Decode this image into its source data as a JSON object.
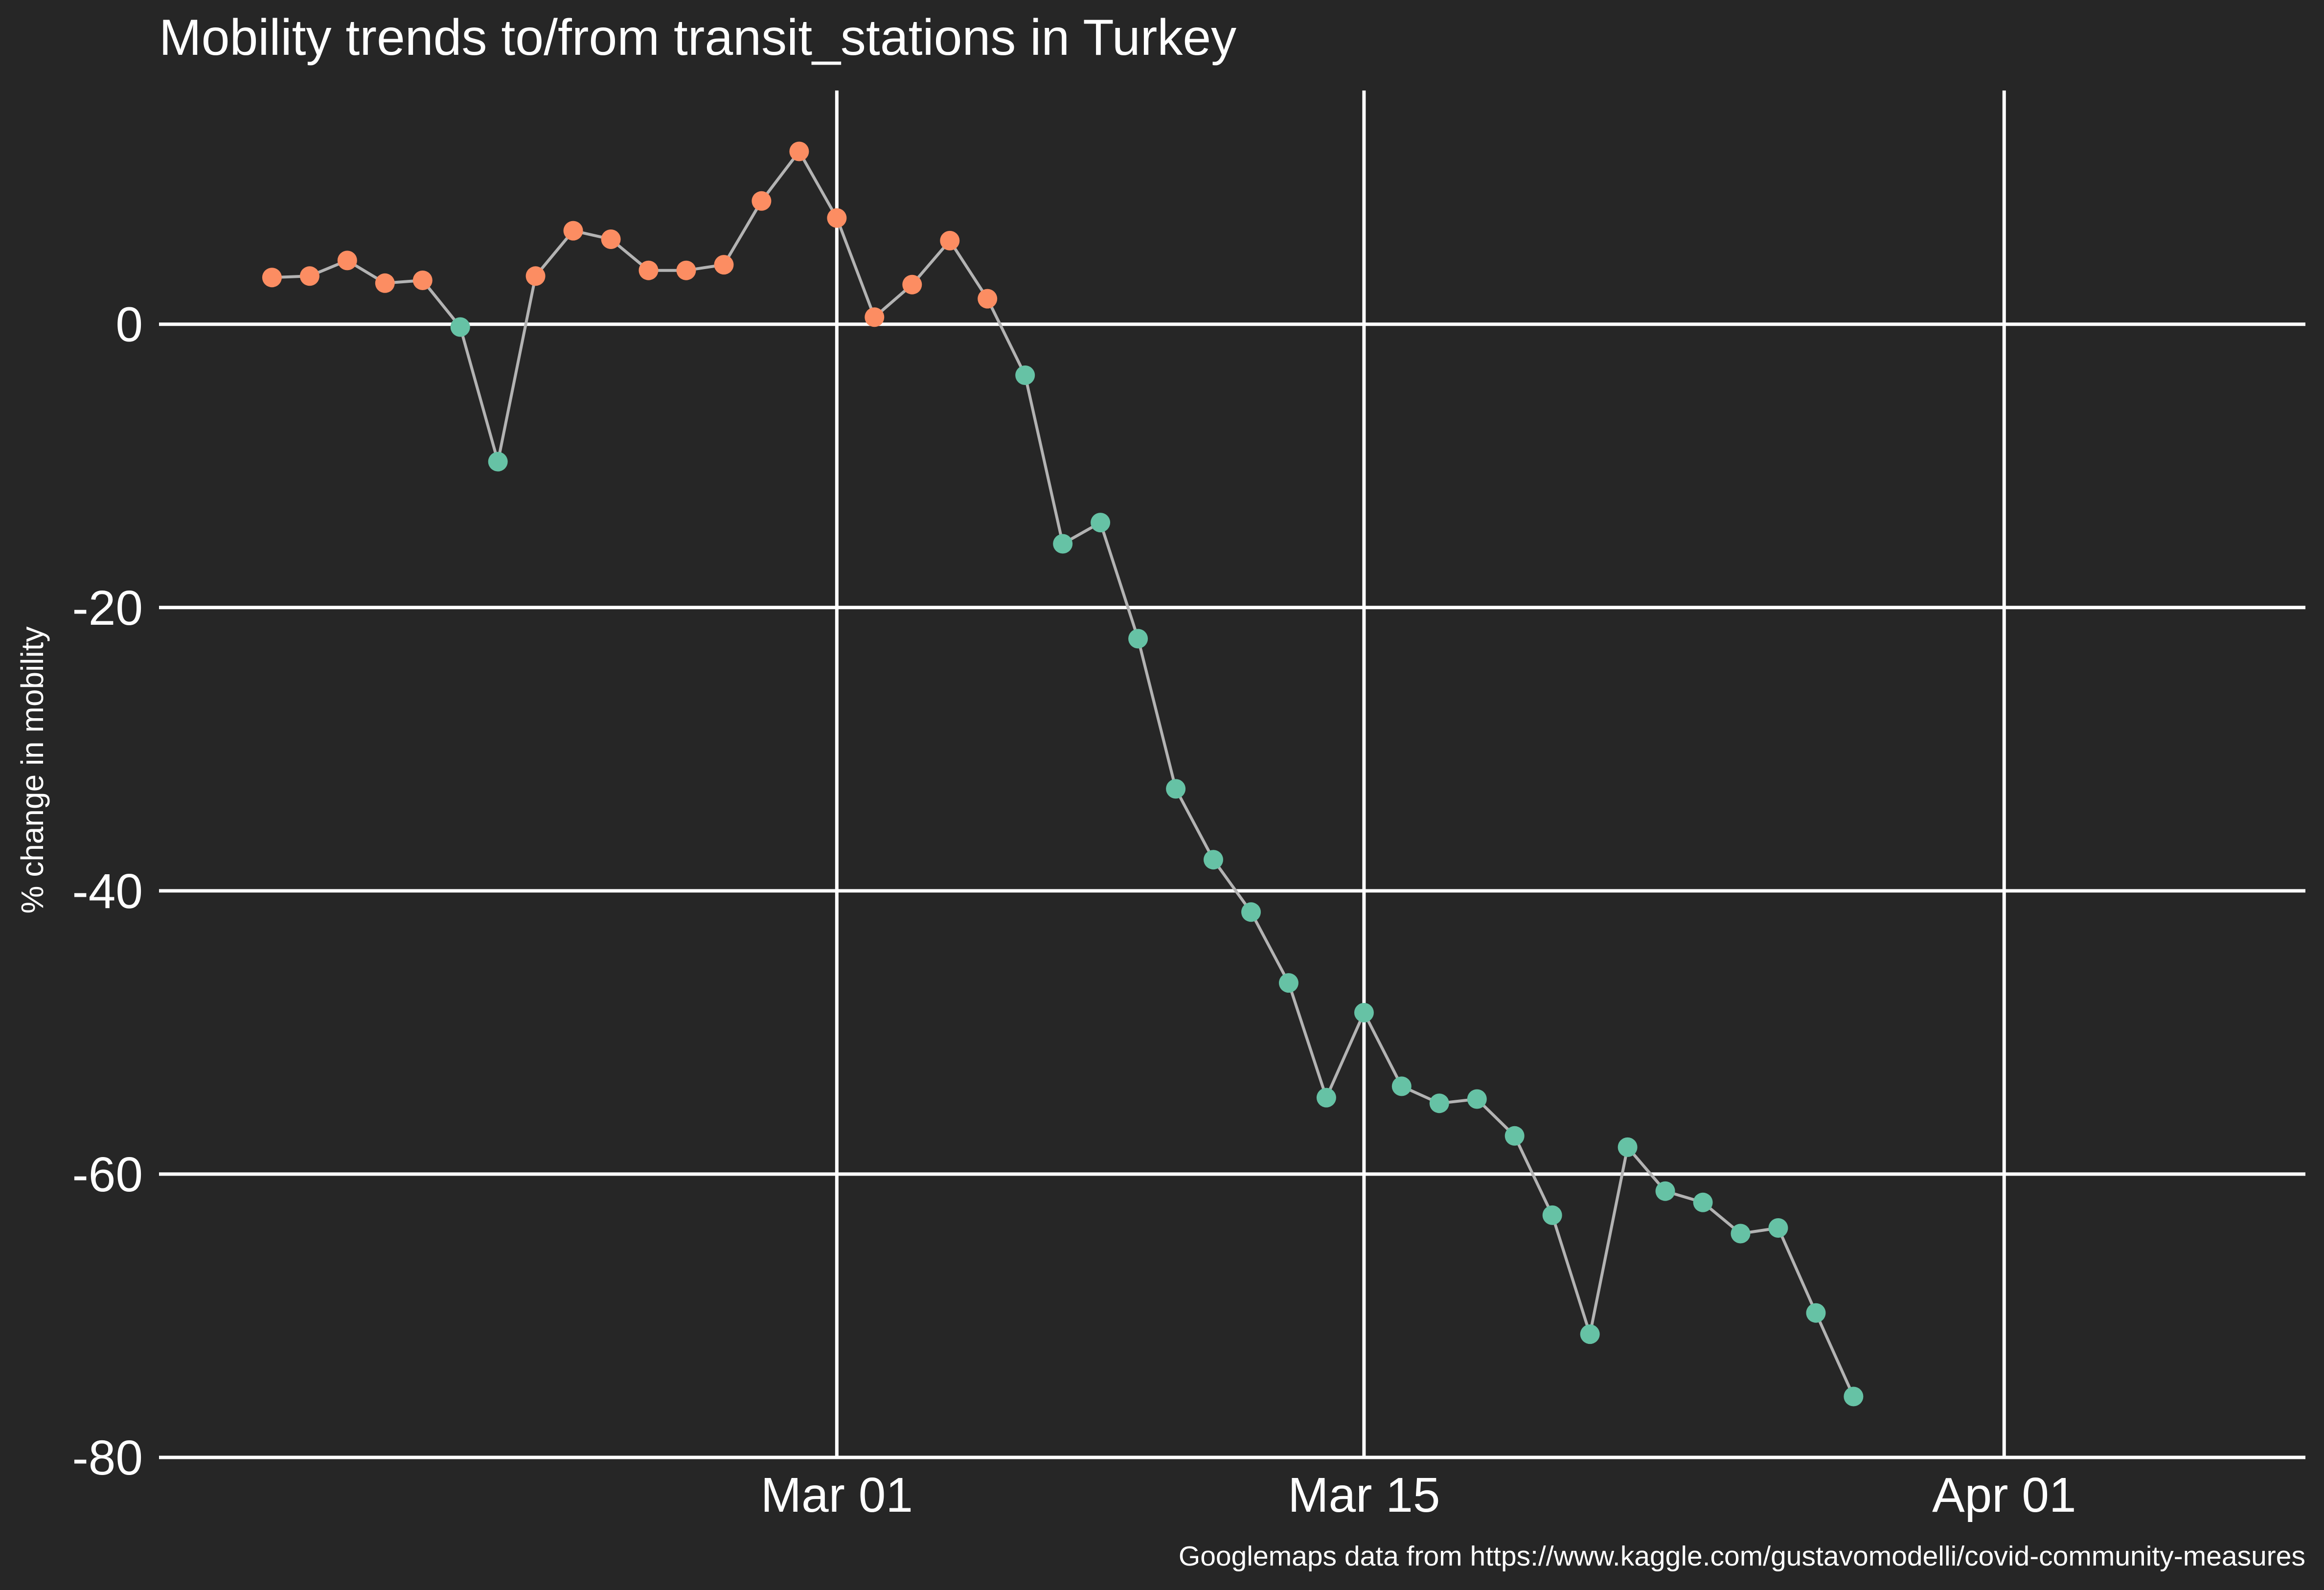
{
  "chart_data": {
    "type": "scatter",
    "title": "Mobility trends to/from transit_stations in Turkey",
    "ylabel": "% change in mobility",
    "xlabel": "",
    "caption": "Googlemaps data from https://www.kaggle.com/gustavomodelli/covid-community-measures",
    "x_start_date": "2020-02-15",
    "x_ticks": [
      {
        "label": "Mar 01",
        "date": "2020-03-01"
      },
      {
        "label": "Mar 15",
        "date": "2020-03-15"
      },
      {
        "label": "Apr 01",
        "date": "2020-04-01"
      }
    ],
    "y_ticks": [
      0,
      -20,
      -40,
      -60,
      -80
    ],
    "xlim": [
      "2020-02-12",
      "2020-04-09"
    ],
    "ylim": [
      -80,
      16.5
    ],
    "grid": true,
    "colors": {
      "positive": "#fc8d62",
      "negative": "#66c2a5",
      "line": "#b3b3b3",
      "background": "#262626",
      "gridline": "#ffffff"
    },
    "series": [
      {
        "values": [
          3.3,
          3.4,
          4.5,
          2.9,
          3.1,
          -0.2,
          -9.7,
          3.4,
          6.6,
          6.0,
          3.8,
          3.8,
          4.2,
          8.7,
          12.2,
          7.5,
          0.5,
          2.8,
          5.9,
          1.8,
          -3.6,
          -15.5,
          -14.0,
          -22.2,
          -32.8,
          -37.8,
          -41.5,
          -46.5,
          -54.6,
          -48.6,
          -53.8,
          -55.0,
          -54.7,
          -57.3,
          -62.9,
          -71.3,
          -58.1,
          -61.2,
          -62.0,
          -64.2,
          -63.8,
          -69.8,
          -75.7
        ]
      }
    ]
  }
}
